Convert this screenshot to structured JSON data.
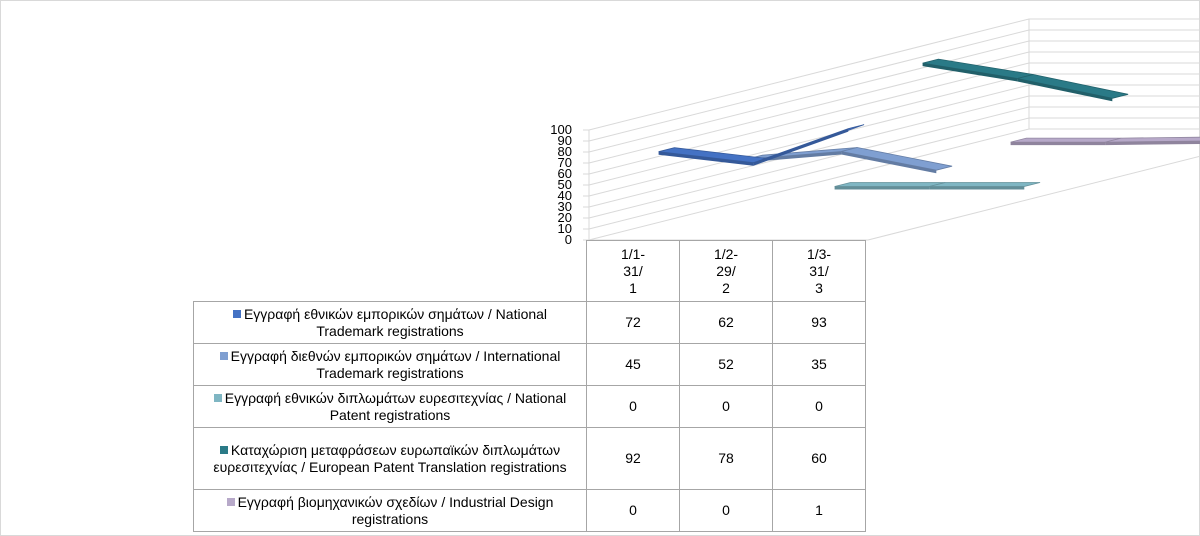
{
  "chart_data": {
    "type": "line",
    "style": "3d",
    "categories": [
      "1/1-\n31/\n1",
      "1/2-\n29/\n2",
      "1/3-\n31/\n3"
    ],
    "ylim": [
      0,
      100
    ],
    "yticks": [
      "0",
      "10",
      "20",
      "30",
      "40",
      "50",
      "60",
      "70",
      "80",
      "90",
      "100"
    ],
    "grid": true,
    "series": [
      {
        "name": "Εγγραφή εθνικών εμπορικών σημάτων / National Trademark registrations",
        "values": [
          72,
          62,
          93
        ],
        "color": "#4472c4"
      },
      {
        "name": "Εγγραφή διεθνών εμπορικών σημάτων / International Trademark registrations",
        "values": [
          45,
          52,
          35
        ],
        "color": "#7f9fd1"
      },
      {
        "name": "Εγγραφή εθνικών διπλωμάτων ευρεσιτεχνίας / National Patent registrations",
        "values": [
          0,
          0,
          0
        ],
        "color": "#7fb6c3"
      },
      {
        "name": "Καταχώριση μεταφράσεων ευρωπαϊκών διπλωμάτων ευρεσιτεχνίας / European Patent Translation registrations",
        "values": [
          92,
          78,
          60
        ],
        "color": "#2a7a87"
      },
      {
        "name": "Εγγραφή βιομηχανικών σχεδίων / Industrial Design registrations",
        "values": [
          0,
          0,
          1
        ],
        "color": "#b7a9c9"
      }
    ]
  }
}
